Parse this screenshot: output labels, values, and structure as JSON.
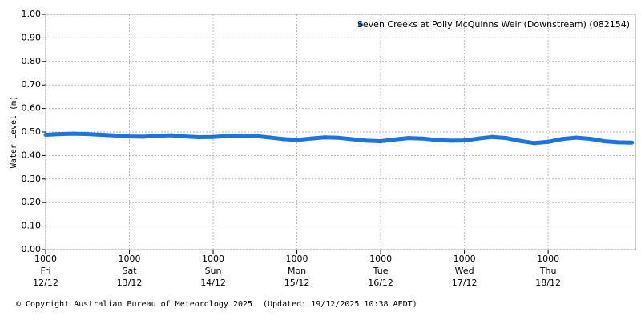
{
  "chart_data": {
    "type": "scatter",
    "y_label": "Water Level (m)",
    "x": [
      0,
      4,
      8,
      12,
      16,
      20,
      24,
      28,
      32,
      36,
      40,
      44,
      48,
      52,
      56,
      60,
      64,
      68,
      72,
      76,
      80,
      84,
      88,
      92,
      96,
      100,
      104,
      108,
      112,
      116,
      120,
      124,
      128,
      132,
      136,
      140,
      144,
      148,
      152,
      156,
      160,
      164,
      168
    ],
    "series": [
      {
        "name": "Seven Creeks at Polly McQuinns Weir (Downstream) (082154)",
        "color": "#1a75e0",
        "values": [
          0.488,
          0.491,
          0.493,
          0.491,
          0.488,
          0.485,
          0.481,
          0.48,
          0.484,
          0.486,
          0.481,
          0.478,
          0.479,
          0.483,
          0.484,
          0.483,
          0.477,
          0.47,
          0.466,
          0.472,
          0.477,
          0.475,
          0.469,
          0.463,
          0.461,
          0.468,
          0.474,
          0.472,
          0.466,
          0.463,
          0.464,
          0.472,
          0.479,
          0.474,
          0.462,
          0.453,
          0.458,
          0.47,
          0.476,
          0.471,
          0.461,
          0.456,
          0.455
        ]
      }
    ],
    "xlim": [
      0,
      169
    ],
    "xticks": [
      {
        "value": 0,
        "label": [
          "1000",
          "Fri",
          "12/12"
        ]
      },
      {
        "value": 24,
        "label": [
          "1000",
          "Sat",
          "13/12"
        ]
      },
      {
        "value": 48,
        "label": [
          "1000",
          "Sun",
          "14/12"
        ]
      },
      {
        "value": 72,
        "label": [
          "1000",
          "Mon",
          "15/12"
        ]
      },
      {
        "value": 96,
        "label": [
          "1000",
          "Tue",
          "16/12"
        ]
      },
      {
        "value": 120,
        "label": [
          "1000",
          "Wed",
          "17/12"
        ]
      },
      {
        "value": 144,
        "label": [
          "1000",
          "Thu",
          "18/12"
        ]
      }
    ],
    "ylim": [
      0,
      1
    ],
    "yticks": [
      {
        "value": 0,
        "label": "0.00"
      },
      {
        "value": 0.1,
        "label": "0.10"
      },
      {
        "value": 0.2,
        "label": "0.20"
      },
      {
        "value": 0.3,
        "label": "0.30"
      },
      {
        "value": 0.4,
        "label": "0.40"
      },
      {
        "value": 0.5,
        "label": "0.50"
      },
      {
        "value": 0.6,
        "label": "0.60"
      },
      {
        "value": 0.7,
        "label": "0.70"
      },
      {
        "value": 0.8,
        "label": "0.80"
      },
      {
        "value": 0.9,
        "label": "0.90"
      },
      {
        "value": 1,
        "label": "1.00"
      }
    ],
    "grid": true,
    "legend": "top-right",
    "copyright": "© Copyright Australian Bureau of Meteorology 2025",
    "updated": "(Updated: 19/12/2025 10:38 AEDT)"
  }
}
